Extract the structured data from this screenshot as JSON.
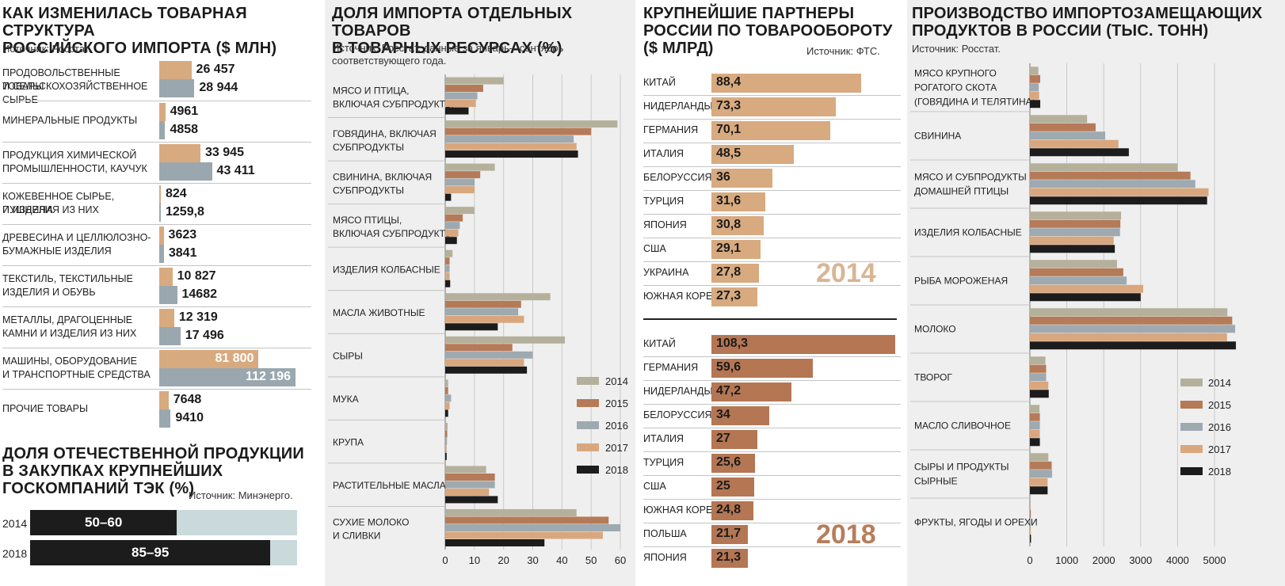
{
  "colors": {
    "c2014": "#b5b09c",
    "c2015": "#b57a57",
    "c2016": "#9ea9b0",
    "c2017": "#d9a77e",
    "c2018": "#1c1c1c",
    "tan": "#d8aa7f",
    "steel": "#9aa7ae",
    "brown": "#b47653",
    "panel_bg": "#efefef",
    "light": "#c9d9dc"
  },
  "import_structure": {
    "title_line1": "КАК ИЗМЕНИЛАСЬ ТОВАРНАЯ СТРУКТУРА",
    "title_line2": "РОССИЙСКОГО ИМПОРТА ($ МЛН)",
    "source": "Источник: Росстат.",
    "categories": [
      {
        "l1": "ПРОДОВОЛЬСТВЕННЫЕ ТОВАРЫ",
        "l2": "И СЕЛЬСКОХОЗЯЙСТВЕННОЕ СЫРЬЕ",
        "v1_label": "26 457",
        "v2_label": "28 944"
      },
      {
        "l1": "МИНЕРАЛЬНЫЕ ПРОДУКТЫ",
        "l2": "",
        "v1_label": "4961",
        "v2_label": "4858"
      },
      {
        "l1": "ПРОДУКЦИЯ ХИМИЧЕСКОЙ",
        "l2": "ПРОМЫШЛЕННОСТИ, КАУЧУК",
        "v1_label": "33 945",
        "v2_label": "43 411"
      },
      {
        "l1": "КОЖЕВЕННОЕ СЫРЬЕ, ПУШНИНА",
        "l2": "И ИЗДЕЛИЯ ИЗ НИХ",
        "v1_label": "824",
        "v2_label": "1259,8"
      },
      {
        "l1": "ДРЕВЕСИНА И ЦЕЛЛЮЛОЗНО-",
        "l2": "БУМАЖНЫЕ ИЗДЕЛИЯ",
        "v1_label": "3623",
        "v2_label": "3841"
      },
      {
        "l1": "ТЕКСТИЛЬ, ТЕКСТИЛЬНЫЕ",
        "l2": "ИЗДЕЛИЯ И ОБУВЬ",
        "v1_label": "10 827",
        "v2_label": "14682"
      },
      {
        "l1": "МЕТАЛЛЫ, ДРАГОЦЕННЫЕ",
        "l2": "КАМНИ И ИЗДЕЛИЯ ИЗ НИХ",
        "v1_label": "12 319",
        "v2_label": "17 496"
      },
      {
        "l1": "МАШИНЫ, ОБОРУДОВАНИЕ",
        "l2": "И ТРАНСПОРТНЫЕ СРЕДСТВА",
        "v1_label": "81 800",
        "v2_label": "112 196"
      },
      {
        "l1": "ПРОЧИЕ ТОВАРЫ",
        "l2": "",
        "v1_label": "7648",
        "v2_label": "9410"
      }
    ]
  },
  "energy_share": {
    "title_line1": "ДОЛЯ ОТЕЧЕСТВЕННОЙ ПРОДУКЦИИ",
    "title_line2": "В ЗАКУПКАХ КРУПНЕЙШИХ",
    "title_line3": "ГОСКОМПАНИЙ ТЭК (%)",
    "source": "Источник: Минэнерго.",
    "rows": [
      {
        "year": "2014",
        "label": "50–60"
      },
      {
        "year": "2018",
        "label": "85–95"
      }
    ]
  },
  "import_share": {
    "title_line1": "ДОЛЯ ИМПОРТА ОТДЕЛЬНЫХ ТОВАРОВ",
    "title_line2": "В ТОВАРНЫХ РЕСУРСАХ (%)",
    "source_line1": "Источник: Росстат, данные за январь—сентябрь",
    "source_line2": "соответствующего года.",
    "legend": [
      "2014",
      "2015",
      "2016",
      "2017",
      "2018"
    ],
    "categories": [
      {
        "l1": "МЯСО И ПТИЦА,",
        "l2": "ВКЛЮЧАЯ СУБПРОДУКТЫ"
      },
      {
        "l1": "ГОВЯДИНА, ВКЛЮЧАЯ",
        "l2": "СУБПРОДУКТЫ"
      },
      {
        "l1": "СВИНИНА, ВКЛЮЧАЯ",
        "l2": "СУБПРОДУКТЫ"
      },
      {
        "l1": "МЯСО ПТИЦЫ,",
        "l2": "ВКЛЮЧАЯ СУБПРОДУКТЫ"
      },
      {
        "l1": "ИЗДЕЛИЯ КОЛБАСНЫЕ",
        "l2": ""
      },
      {
        "l1": "МАСЛА ЖИВОТНЫЕ",
        "l2": ""
      },
      {
        "l1": "СЫРЫ",
        "l2": ""
      },
      {
        "l1": "МУКА",
        "l2": ""
      },
      {
        "l1": "КРУПА",
        "l2": ""
      },
      {
        "l1": "РАСТИТЕЛЬНЫЕ МАСЛА",
        "l2": ""
      },
      {
        "l1": "СУХИЕ МОЛОКО",
        "l2": "И СЛИВКИ"
      }
    ],
    "ticks": [
      "0",
      "10",
      "20",
      "30",
      "40",
      "50",
      "60"
    ]
  },
  "partners": {
    "title_line1": "КРУПНЕЙШИЕ ПАРТНЕРЫ",
    "title_line2": "РОССИИ ПО ТОВАРООБОРОТУ",
    "title_line3": "($ МЛРД)",
    "source": "Источник: ФТС.",
    "year_a": "2014",
    "year_b": "2018",
    "list_a": [
      {
        "name": "КИТАЙ",
        "label": "88,4"
      },
      {
        "name": "НИДЕРЛАНДЫ",
        "label": "73,3"
      },
      {
        "name": "ГЕРМАНИЯ",
        "label": "70,1"
      },
      {
        "name": "ИТАЛИЯ",
        "label": "48,5"
      },
      {
        "name": "БЕЛОРУССИЯ",
        "label": "36"
      },
      {
        "name": "ТУРЦИЯ",
        "label": "31,6"
      },
      {
        "name": "ЯПОНИЯ",
        "label": "30,8"
      },
      {
        "name": "США",
        "label": "29,1"
      },
      {
        "name": "УКРАИНА",
        "label": "27,8"
      },
      {
        "name": "ЮЖНАЯ КОРЕЯ",
        "label": "27,3"
      }
    ],
    "list_b": [
      {
        "name": "КИТАЙ",
        "label": "108,3"
      },
      {
        "name": "ГЕРМАНИЯ",
        "label": "59,6"
      },
      {
        "name": "НИДЕРЛАНДЫ",
        "label": "47,2"
      },
      {
        "name": "БЕЛОРУССИЯ",
        "label": "34"
      },
      {
        "name": "ИТАЛИЯ",
        "label": "27"
      },
      {
        "name": "ТУРЦИЯ",
        "label": "25,6"
      },
      {
        "name": "США",
        "label": "25"
      },
      {
        "name": "ЮЖНАЯ КОРЕЯ",
        "label": "24,8"
      },
      {
        "name": "ПОЛЬША",
        "label": "21,7"
      },
      {
        "name": "ЯПОНИЯ",
        "label": "21,3"
      }
    ]
  },
  "production": {
    "title_line1": "ПРОИЗВОДСТВО ИМПОРТОЗАМЕЩАЮЩИХ",
    "title_line2": "ПРОДУКТОВ В РОССИИ (ТЫС. ТОНН)",
    "source": "Источник: Росстат.",
    "legend": [
      "2014",
      "2015",
      "2016",
      "2017",
      "2018"
    ],
    "categories": [
      {
        "l1": "МЯСО КРУПНОГО",
        "l2": "РОГАТОГО СКОТА",
        "l3": "(ГОВЯДИНА И ТЕЛЯТИНА)"
      },
      {
        "l1": "СВИНИНА",
        "l2": "",
        "l3": ""
      },
      {
        "l1": "МЯСО И СУБПРОДУКТЫ",
        "l2": "ДОМАШНЕЙ ПТИЦЫ",
        "l3": ""
      },
      {
        "l1": "ИЗДЕЛИЯ КОЛБАСНЫЕ",
        "l2": "",
        "l3": ""
      },
      {
        "l1": "РЫБА МОРОЖЕНАЯ",
        "l2": "",
        "l3": ""
      },
      {
        "l1": "МОЛОКО",
        "l2": "",
        "l3": ""
      },
      {
        "l1": "ТВОРОГ",
        "l2": "",
        "l3": ""
      },
      {
        "l1": "МАСЛО СЛИВОЧНОЕ",
        "l2": "",
        "l3": ""
      },
      {
        "l1": "СЫРЫ И ПРОДУКТЫ",
        "l2": "СЫРНЫЕ",
        "l3": ""
      },
      {
        "l1": "ФРУКТЫ, ЯГОДЫ И ОРЕХИ",
        "l2": "",
        "l3": ""
      }
    ],
    "ticks": [
      "0",
      "1000",
      "2000",
      "3000",
      "4000",
      "5000"
    ]
  },
  "chart_data": [
    {
      "type": "bar",
      "title": "КАК ИЗМЕНИЛАСЬ ТОВАРНАЯ СТРУКТУРА РОССИЙСКОГО ИМПОРТА ($ МЛН)",
      "orientation": "horizontal",
      "categories": [
        "Продовольственные товары и с/х сырье",
        "Минеральные продукты",
        "Продукция химической промышленности, каучук",
        "Кожевенное сырье, пушнина и изделия из них",
        "Древесина и целлюлозно-бумажные изделия",
        "Текстиль, текстильные изделия и обувь",
        "Металлы, драгоценные камни и изделия из них",
        "Машины, оборудование и транспортные средства",
        "Прочие товары"
      ],
      "series": [
        {
          "name": "верхний столбец",
          "values": [
            26457,
            4961,
            33945,
            824,
            3623,
            10827,
            12319,
            81800,
            7648
          ]
        },
        {
          "name": "нижний столбец",
          "values": [
            28944,
            4858,
            43411,
            1259.8,
            3841,
            14682,
            17496,
            112196,
            9410
          ]
        }
      ]
    },
    {
      "type": "bar",
      "title": "ДОЛЯ ОТЕЧЕСТВЕННОЙ ПРОДУКЦИИ В ЗАКУПКАХ КРУПНЕЙШИХ ГОСКОМПАНИЙ ТЭК (%)",
      "orientation": "horizontal",
      "categories": [
        "2014",
        "2018"
      ],
      "values": [
        55,
        90
      ],
      "value_labels": [
        "50–60",
        "85–95"
      ],
      "xlim": [
        0,
        100
      ]
    },
    {
      "type": "bar",
      "title": "ДОЛЯ ИМПОРТА ОТДЕЛЬНЫХ ТОВАРОВ В ТОВАРНЫХ РЕСУРСАХ (%)",
      "orientation": "horizontal",
      "categories": [
        "Мясо и птица",
        "Говядина",
        "Свинина",
        "Мясо птицы",
        "Изделия колбасные",
        "Масла животные",
        "Сыры",
        "Мука",
        "Крупа",
        "Растительные масла",
        "Сухие молоко и сливки"
      ],
      "series": [
        {
          "name": "2014",
          "values": [
            20,
            59,
            17,
            10,
            2.5,
            36,
            41,
            1,
            0.8,
            14,
            45
          ]
        },
        {
          "name": "2015",
          "values": [
            13,
            50,
            12,
            6,
            1.5,
            26,
            23,
            1,
            0.7,
            17,
            56
          ]
        },
        {
          "name": "2016",
          "values": [
            11,
            44,
            10,
            5,
            1.5,
            25,
            30,
            2,
            0.6,
            17,
            60
          ]
        },
        {
          "name": "2017",
          "values": [
            10.5,
            45,
            10,
            4.5,
            1.5,
            27,
            27,
            1.5,
            0.5,
            15,
            54
          ]
        },
        {
          "name": "2018",
          "values": [
            8,
            45.5,
            2,
            4,
            1.7,
            18,
            28,
            1,
            0.5,
            18,
            34
          ]
        }
      ],
      "xlim": [
        0,
        60
      ]
    },
    {
      "type": "bar",
      "title": "КРУПНЕЙШИЕ ПАРТНЕРЫ РОССИИ ПО ТОВАРООБОРОТУ ($ МЛРД), 2014",
      "orientation": "horizontal",
      "categories": [
        "Китай",
        "Нидерланды",
        "Германия",
        "Италия",
        "Белоруссия",
        "Турция",
        "Япония",
        "США",
        "Украина",
        "Южная Корея"
      ],
      "values": [
        88.4,
        73.3,
        70.1,
        48.5,
        36,
        31.6,
        30.8,
        29.1,
        27.8,
        27.3
      ]
    },
    {
      "type": "bar",
      "title": "КРУПНЕЙШИЕ ПАРТНЕРЫ РОССИИ ПО ТОВАРООБОРОТУ ($ МЛРД), 2018",
      "orientation": "horizontal",
      "categories": [
        "Китай",
        "Германия",
        "Нидерланды",
        "Белоруссия",
        "Италия",
        "Турция",
        "США",
        "Южная Корея",
        "Польша",
        "Япония"
      ],
      "values": [
        108.3,
        59.6,
        47.2,
        34,
        27,
        25.6,
        25,
        24.8,
        21.7,
        21.3
      ]
    },
    {
      "type": "bar",
      "title": "ПРОИЗВОДСТВО ИМПОРТОЗАМЕЩАЮЩИХ ПРОДУКТОВ В РОССИИ (ТЫС. ТОНН)",
      "orientation": "horizontal",
      "categories": [
        "Мясо КРС",
        "Свинина",
        "Мясо и субпродукты домашней птицы",
        "Изделия колбасные",
        "Рыба мороженая",
        "Молоко",
        "Творог",
        "Масло сливочное",
        "Сыры и продукты сырные",
        "Фрукты, ягоды и орехи"
      ],
      "series": [
        {
          "name": "2014",
          "values": [
            230,
            1550,
            4000,
            2470,
            2360,
            5350,
            420,
            260,
            500,
            20
          ]
        },
        {
          "name": "2015",
          "values": [
            280,
            1780,
            4350,
            2450,
            2530,
            5480,
            440,
            270,
            590,
            25
          ]
        },
        {
          "name": "2016",
          "values": [
            240,
            2040,
            4480,
            2440,
            2620,
            5560,
            440,
            270,
            600,
            25
          ]
        },
        {
          "name": "2017",
          "values": [
            250,
            2400,
            4840,
            2270,
            3070,
            5340,
            500,
            270,
            480,
            25
          ]
        },
        {
          "name": "2018",
          "values": [
            280,
            2680,
            4800,
            2300,
            3000,
            5580,
            510,
            270,
            480,
            30
          ]
        }
      ],
      "xlim": [
        0,
        5600
      ]
    }
  ]
}
